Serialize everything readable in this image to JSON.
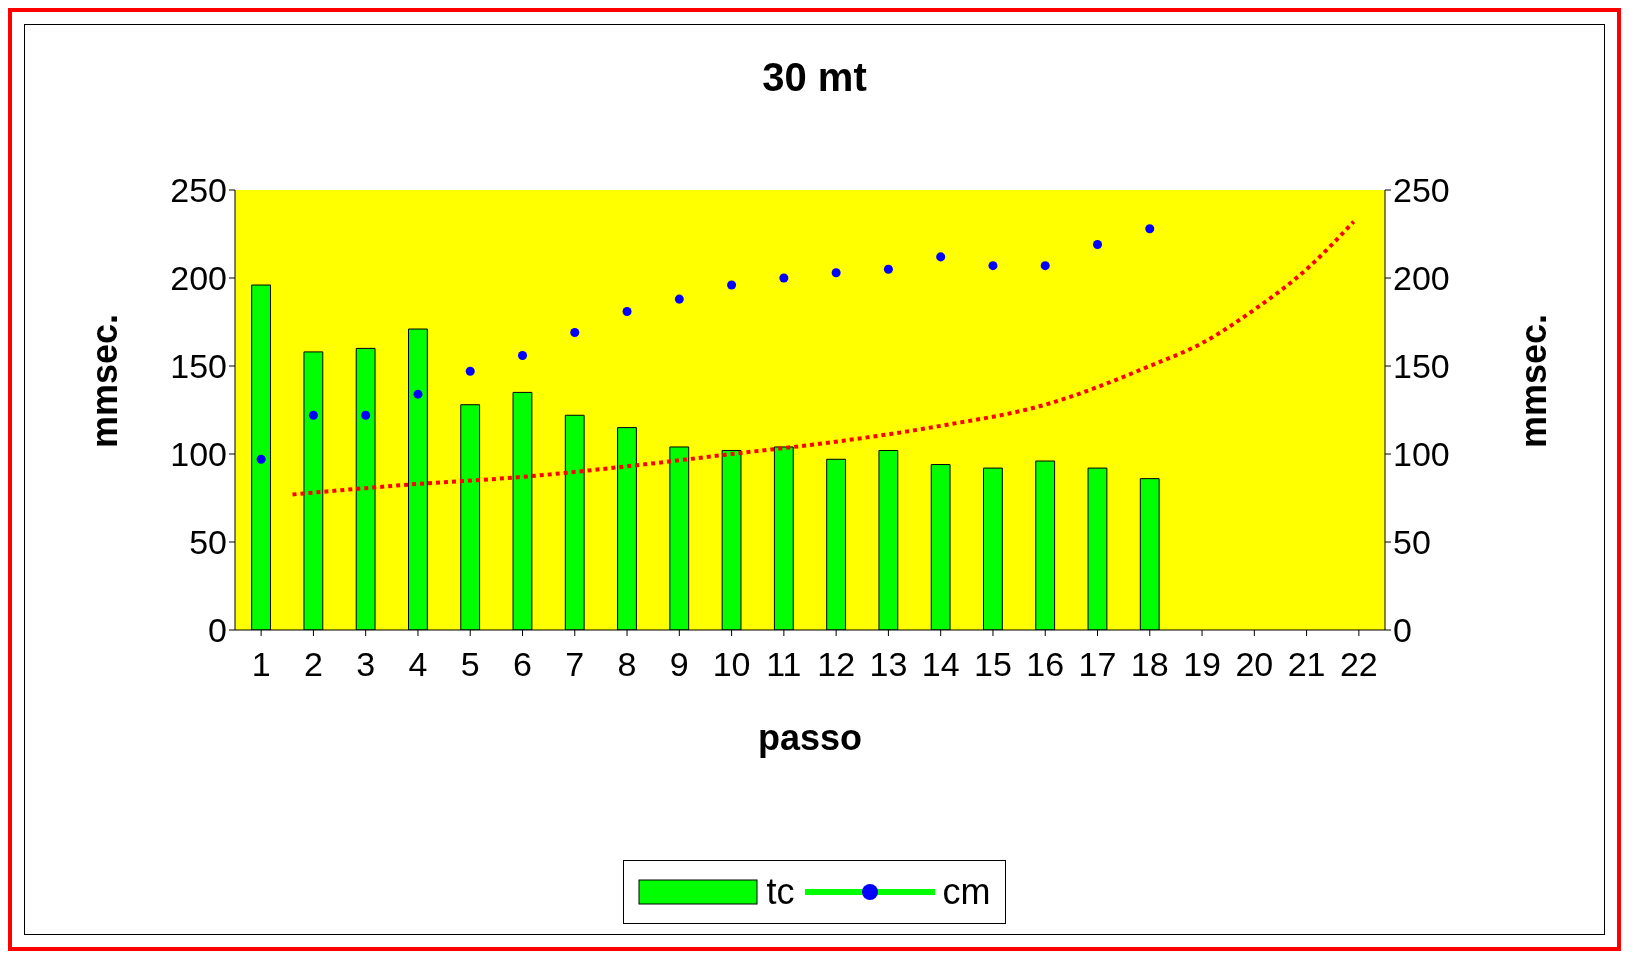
{
  "chart_data": {
    "type": "bar",
    "title": "30 mt",
    "xlabel": "passo",
    "ylabel": "mmsec.",
    "y2label": "mmsec.",
    "x": [
      1,
      2,
      3,
      4,
      5,
      6,
      7,
      8,
      9,
      10,
      11,
      12,
      13,
      14,
      15,
      16,
      17,
      18
    ],
    "xlim": [
      0.5,
      22.5
    ],
    "xticks": [
      1,
      2,
      3,
      4,
      5,
      6,
      7,
      8,
      9,
      10,
      11,
      12,
      13,
      14,
      15,
      16,
      17,
      18,
      19,
      20,
      21,
      22
    ],
    "ylim": [
      0,
      250
    ],
    "yticks": [
      0,
      50,
      100,
      150,
      200,
      250
    ],
    "y2lim": [
      0,
      250
    ],
    "y2ticks": [
      0,
      50,
      100,
      150,
      200,
      250
    ],
    "grid": false,
    "legend": "bottom",
    "series": [
      {
        "name": "tc",
        "color": "#00ff00",
        "values": [
          196,
          158,
          160,
          171,
          128,
          135,
          122,
          115,
          104,
          102,
          104,
          97,
          102,
          94,
          92,
          96,
          92,
          86
        ]
      },
      {
        "name": "cm",
        "type": "scatter",
        "color": "#0000ff",
        "marker": "circle",
        "values": [
          97,
          122,
          122,
          134,
          147,
          156,
          169,
          181,
          188,
          196,
          200,
          203,
          205,
          212,
          207,
          207,
          219,
          228
        ]
      },
      {
        "type": "line",
        "color": "#ff0000",
        "line_style": "dotted",
        "marker": "none",
        "x": [
          1.6,
          4,
          6,
          8,
          10,
          12,
          14,
          16,
          18,
          19,
          20,
          21,
          21.9
        ],
        "values": [
          77,
          83,
          87,
          93,
          100,
          107,
          116,
          128,
          150,
          163,
          182,
          205,
          232
        ]
      }
    ]
  }
}
